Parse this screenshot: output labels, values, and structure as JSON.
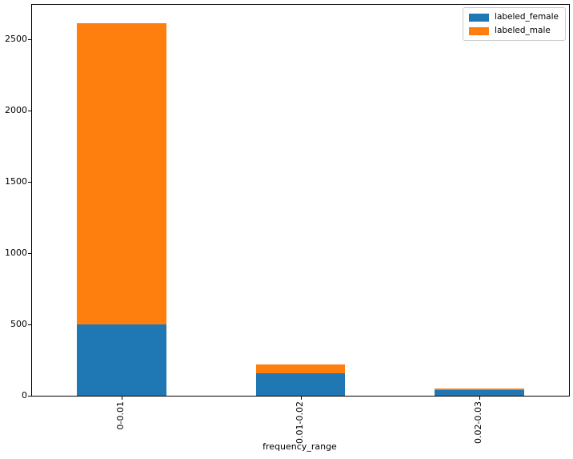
{
  "chart_data": {
    "type": "bar",
    "stacked": true,
    "title": "",
    "xlabel": "frequency_range",
    "ylabel": "",
    "categories": [
      "0-0.01",
      "0.01-0.02",
      "0.02-0.03"
    ],
    "series": [
      {
        "name": "labeled_female",
        "color": "#1f77b4",
        "values": [
          500,
          160,
          40
        ]
      },
      {
        "name": "labeled_male",
        "color": "#ff7f0e",
        "values": [
          2110,
          60,
          8
        ]
      }
    ],
    "totals": [
      2610,
      220,
      48
    ],
    "ylim": [
      0,
      2740
    ],
    "yticks": [
      0,
      500,
      1000,
      1500,
      2000,
      2500
    ],
    "xtick_rotation": 90,
    "bar_width_fraction": 0.5,
    "grid": false,
    "legend_position": "upper right",
    "legend_labels": [
      "labeled_female",
      "labeled_male"
    ]
  }
}
